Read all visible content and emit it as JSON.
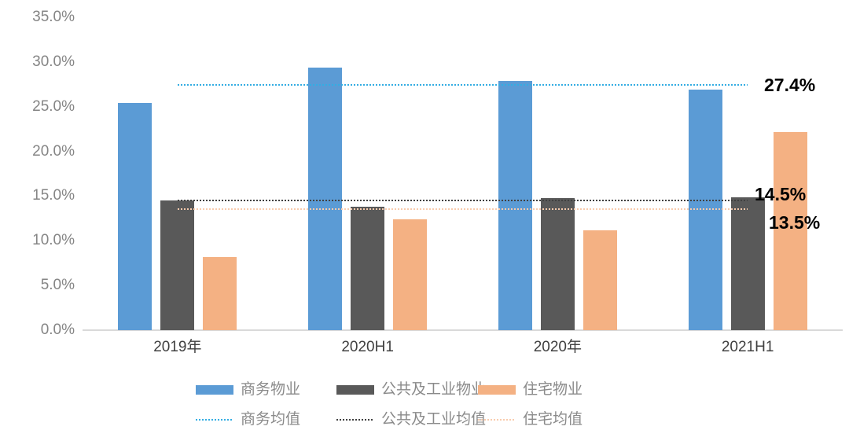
{
  "chart_data": {
    "type": "bar",
    "title": "",
    "categories": [
      "2019年",
      "2020H1",
      "2020年",
      "2021H1"
    ],
    "series": [
      {
        "name": "商务物业",
        "color": "#5B9BD5",
        "values": [
          25.4,
          29.4,
          27.9,
          26.9
        ]
      },
      {
        "name": "公共及工业物业",
        "color": "#595959",
        "values": [
          14.5,
          13.8,
          14.8,
          14.9
        ]
      },
      {
        "name": "住宅物业",
        "color": "#F4B183",
        "values": [
          8.2,
          12.4,
          11.2,
          22.2
        ]
      }
    ],
    "average_lines": [
      {
        "name": "商务均值",
        "color": "#33ADE3",
        "value": 27.4,
        "label": "27.4%"
      },
      {
        "name": "公共及工业均值",
        "color": "#404040",
        "value": 14.5,
        "label": "14.5%"
      },
      {
        "name": "住宅均值",
        "color": "#F8CBAD",
        "value": 13.5,
        "label": "13.5%"
      }
    ],
    "ylim": [
      0,
      35
    ],
    "ytick_step": 5,
    "ytick_labels": [
      "0.0%",
      "5.0%",
      "10.0%",
      "15.0%",
      "20.0%",
      "25.0%",
      "30.0%",
      "35.0%"
    ],
    "xlabel": "",
    "ylabel": "",
    "grid": false,
    "legend_position": "bottom",
    "legend_rows": [
      [
        "商务物业",
        "公共及工业物业",
        "住宅物业"
      ],
      [
        "商务均值",
        "公共及工业均值",
        "住宅均值"
      ]
    ],
    "axis_colors": {
      "baseline": "#d9d9d9",
      "ytick_text": "#858585",
      "xtick_text": "#404040",
      "annotation_text": "#000000"
    }
  }
}
